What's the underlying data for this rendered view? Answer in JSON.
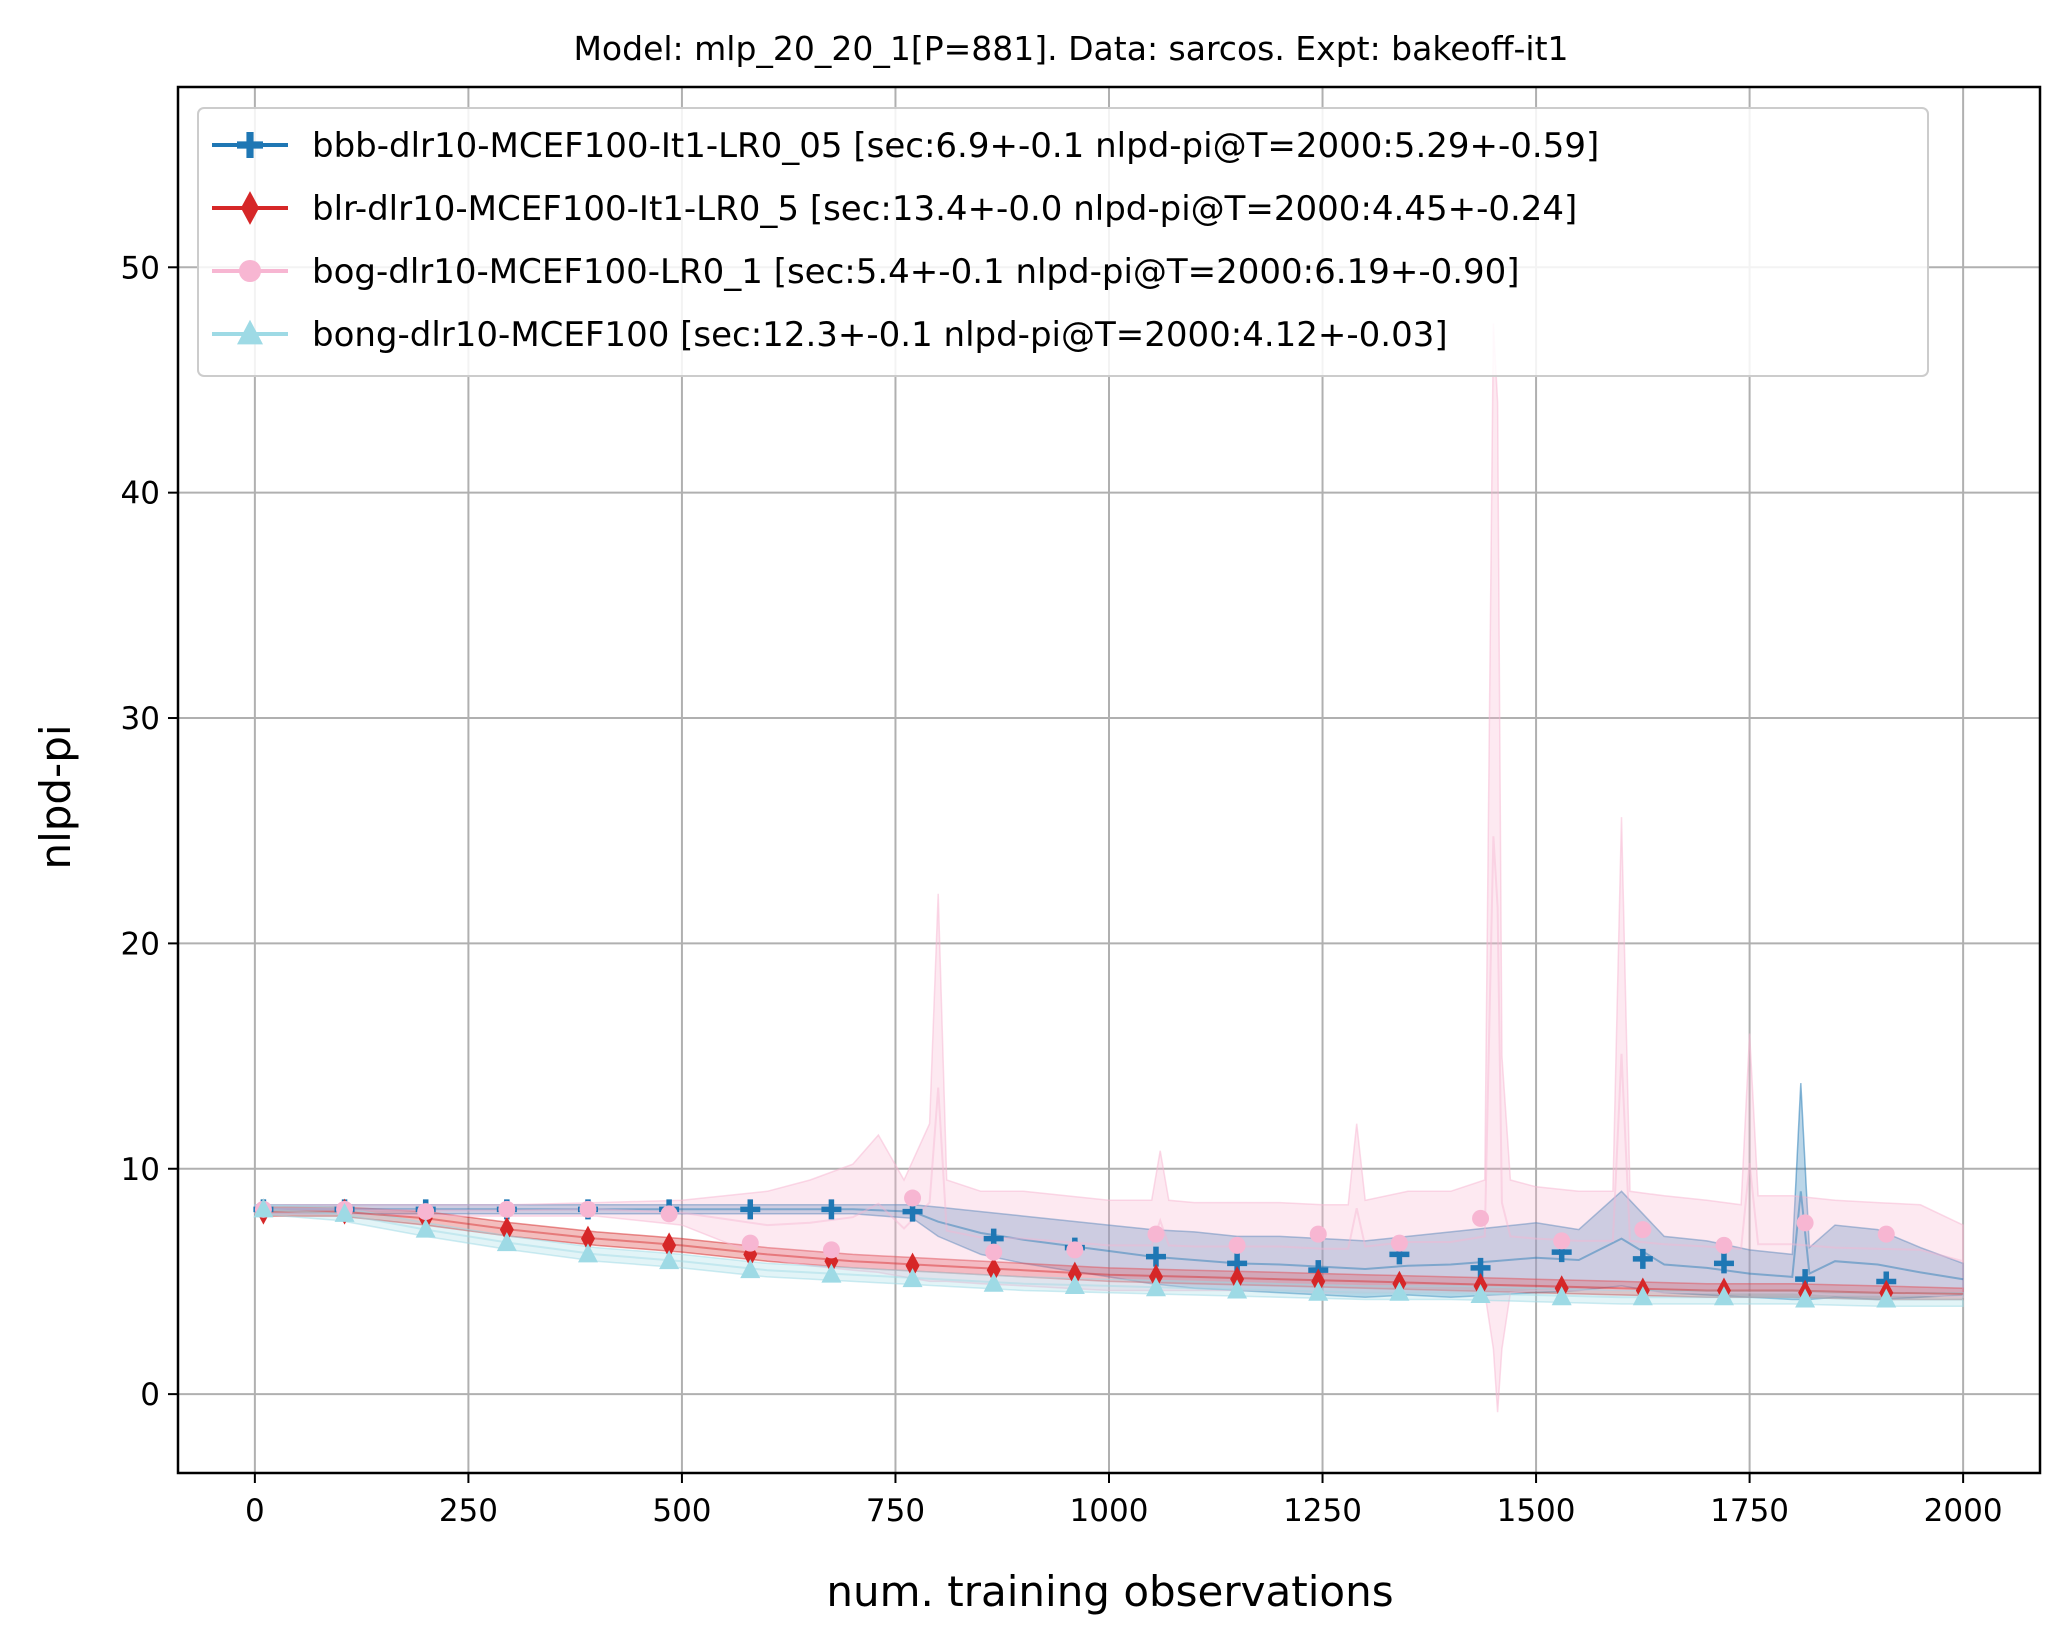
{
  "chart_data": {
    "type": "line",
    "title": "Model: mlp_20_20_1[P=881]. Data: sarcos. Expt: bakeoff-it1",
    "xlabel": "num. training observations",
    "ylabel": "nlpd-pi",
    "xlim": [
      -90,
      2090
    ],
    "ylim": [
      -3.5,
      58
    ],
    "xticks": [
      0,
      250,
      500,
      750,
      1000,
      1250,
      1500,
      1750,
      2000
    ],
    "yticks": [
      0,
      10,
      20,
      30,
      40,
      50
    ],
    "grid": true,
    "legend_position": "top-left",
    "x": [
      10,
      105,
      200,
      295,
      390,
      485,
      580,
      675,
      770,
      865,
      960,
      1055,
      1150,
      1245,
      1340,
      1435,
      1530,
      1625,
      1720,
      1815,
      1910
    ],
    "series": [
      {
        "name": "bbb-dlr10-MCEF100-It1-LR0_05 [sec:6.9+-0.1 nlpd-pi@T=2000:5.29+-0.59]",
        "color": "#1f77b4",
        "marker": "plus",
        "values": [
          8.2,
          8.2,
          8.2,
          8.2,
          8.2,
          8.2,
          8.2,
          8.2,
          8.1,
          6.9,
          6.5,
          6.1,
          5.8,
          5.5,
          6.2,
          5.6,
          6.3,
          6.0,
          5.8,
          5.1,
          5.0
        ],
        "band_x": [
          0,
          100,
          200,
          300,
          400,
          500,
          600,
          700,
          770,
          800,
          850,
          900,
          950,
          1000,
          1050,
          1100,
          1150,
          1200,
          1250,
          1300,
          1350,
          1400,
          1450,
          1500,
          1550,
          1600,
          1650,
          1700,
          1750,
          1800,
          1810,
          1820,
          1850,
          1900,
          1950,
          2000
        ],
        "band_lower": [
          8.0,
          8.0,
          8.0,
          8.0,
          8.0,
          8.0,
          8.0,
          8.0,
          7.8,
          7.0,
          6.2,
          5.8,
          5.5,
          5.2,
          4.9,
          4.7,
          4.6,
          4.5,
          4.4,
          4.3,
          4.4,
          4.3,
          4.4,
          4.5,
          4.6,
          4.8,
          4.5,
          4.4,
          4.3,
          4.2,
          4.2,
          4.2,
          4.3,
          4.2,
          4.3,
          4.4
        ],
        "band_upper": [
          8.4,
          8.4,
          8.4,
          8.4,
          8.4,
          8.4,
          8.4,
          8.4,
          8.4,
          8.3,
          8.1,
          7.9,
          7.7,
          7.5,
          7.3,
          7.2,
          7.0,
          7.0,
          6.9,
          6.8,
          7.0,
          7.2,
          7.4,
          7.6,
          7.3,
          9.0,
          7.0,
          6.8,
          6.4,
          6.2,
          13.8,
          6.5,
          7.5,
          7.3,
          6.5,
          5.8
        ]
      },
      {
        "name": "blr-dlr10-MCEF100-It1-LR0_5 [sec:13.4+-0.0 nlpd-pi@T=2000:4.45+-0.24]",
        "color": "#d62728",
        "marker": "diamond",
        "values": [
          8.1,
          8.1,
          7.8,
          7.3,
          6.9,
          6.6,
          6.2,
          5.9,
          5.7,
          5.5,
          5.3,
          5.2,
          5.1,
          5.0,
          4.9,
          4.8,
          4.7,
          4.6,
          4.6,
          4.5,
          4.5
        ],
        "band_x": [
          0,
          100,
          200,
          300,
          400,
          500,
          600,
          700,
          800,
          900,
          1000,
          1100,
          1200,
          1300,
          1400,
          1500,
          1600,
          1700,
          1800,
          1900,
          2000
        ],
        "band_lower": [
          7.9,
          7.9,
          7.5,
          7.0,
          6.6,
          6.3,
          5.9,
          5.6,
          5.4,
          5.2,
          5.0,
          4.9,
          4.8,
          4.7,
          4.6,
          4.5,
          4.4,
          4.3,
          4.3,
          4.2,
          4.2
        ],
        "band_upper": [
          8.3,
          8.3,
          8.1,
          7.6,
          7.2,
          6.9,
          6.5,
          6.2,
          6.0,
          5.8,
          5.6,
          5.5,
          5.4,
          5.3,
          5.2,
          5.1,
          5.0,
          4.9,
          4.9,
          4.8,
          4.7
        ]
      },
      {
        "name": "bog-dlr10-MCEF100-LR0_1 [sec:5.4+-0.1 nlpd-pi@T=2000:6.19+-0.90]",
        "color": "#f7b6d2",
        "marker": "circle",
        "values": [
          8.2,
          8.2,
          8.1,
          8.2,
          8.2,
          8.0,
          6.7,
          6.4,
          8.7,
          6.3,
          6.4,
          7.1,
          6.6,
          7.1,
          6.7,
          7.8,
          6.8,
          7.3,
          6.6,
          7.6,
          7.1
        ],
        "band_x": [
          0,
          100,
          200,
          300,
          400,
          500,
          600,
          650,
          700,
          730,
          760,
          790,
          800,
          810,
          850,
          900,
          950,
          1000,
          1050,
          1060,
          1070,
          1100,
          1150,
          1200,
          1250,
          1280,
          1290,
          1300,
          1350,
          1400,
          1440,
          1450,
          1455,
          1460,
          1470,
          1500,
          1550,
          1590,
          1600,
          1610,
          1650,
          1700,
          1740,
          1750,
          1760,
          1800,
          1850,
          1900,
          1950,
          2000
        ],
        "band_lower": [
          8.0,
          8.0,
          7.9,
          7.9,
          7.9,
          7.5,
          6.0,
          5.7,
          5.5,
          5.4,
          5.2,
          5.0,
          5.0,
          5.0,
          4.9,
          4.8,
          4.7,
          4.6,
          4.6,
          4.6,
          4.6,
          4.6,
          4.6,
          4.6,
          4.5,
          4.5,
          4.5,
          4.5,
          4.5,
          4.5,
          4.5,
          2.0,
          -0.8,
          2.0,
          4.5,
          4.6,
          4.6,
          4.6,
          4.6,
          4.6,
          4.5,
          4.5,
          4.5,
          4.5,
          4.5,
          4.5,
          4.4,
          4.4,
          4.4,
          4.3
        ],
        "band_upper": [
          8.4,
          8.4,
          8.4,
          8.4,
          8.5,
          8.6,
          9.0,
          9.5,
          10.2,
          11.5,
          9.5,
          12.0,
          22.2,
          9.5,
          9.0,
          9.0,
          8.8,
          8.6,
          8.6,
          10.8,
          8.6,
          8.5,
          8.5,
          8.5,
          8.4,
          8.4,
          12.0,
          8.6,
          9.0,
          9.0,
          9.5,
          47.5,
          44.0,
          15.0,
          9.5,
          9.2,
          9.0,
          9.0,
          25.6,
          9.0,
          8.8,
          8.6,
          8.4,
          16.0,
          8.8,
          8.8,
          8.6,
          8.5,
          8.4,
          7.5
        ]
      },
      {
        "name": "bong-dlr10-MCEF100 [sec:12.3+-0.1 nlpd-pi@T=2000:4.12+-0.03]",
        "color": "#9edae5",
        "marker": "triangle",
        "values": [
          8.2,
          8.0,
          7.3,
          6.7,
          6.2,
          5.9,
          5.5,
          5.3,
          5.1,
          4.9,
          4.8,
          4.7,
          4.6,
          4.5,
          4.5,
          4.4,
          4.3,
          4.3,
          4.3,
          4.2,
          4.2
        ],
        "band_x": [
          0,
          100,
          200,
          300,
          400,
          500,
          600,
          700,
          800,
          900,
          1000,
          1100,
          1200,
          1300,
          1400,
          1500,
          1600,
          1700,
          1800,
          1900,
          2000
        ],
        "band_lower": [
          8.0,
          7.7,
          7.0,
          6.4,
          5.9,
          5.6,
          5.2,
          5.0,
          4.8,
          4.6,
          4.5,
          4.4,
          4.3,
          4.2,
          4.2,
          4.1,
          4.0,
          4.0,
          4.0,
          3.9,
          3.9
        ],
        "band_upper": [
          8.4,
          8.3,
          7.6,
          7.0,
          6.5,
          6.2,
          5.8,
          5.6,
          5.4,
          5.2,
          5.1,
          5.0,
          4.9,
          4.8,
          4.8,
          4.7,
          4.6,
          4.6,
          4.6,
          4.5,
          4.5
        ]
      }
    ]
  }
}
